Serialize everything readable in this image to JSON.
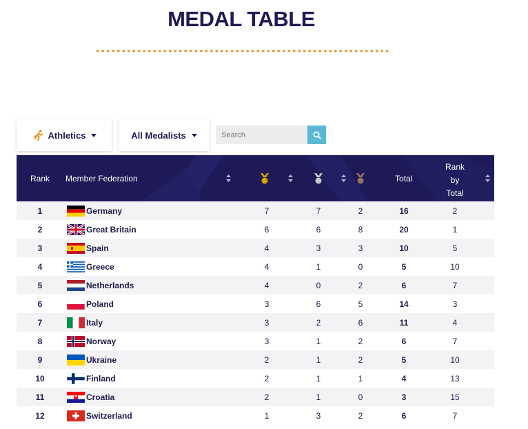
{
  "page_title": "MEDAL TABLE",
  "filters": {
    "sport_label": "Athletics",
    "medalist_label": "All Medalists",
    "search_placeholder": "Search"
  },
  "colors": {
    "header_bg": "#1d1a57",
    "accent": "#f18a1c",
    "search_button": "#5bb8d4",
    "gold": "#d9a400",
    "silver": "#a9a9a9",
    "bronze": "#8a6a5a"
  },
  "table": {
    "headers": {
      "rank": "Rank",
      "member": "Member Federation",
      "gold_icon": "gold-medal-icon",
      "silver_icon": "silver-medal-icon",
      "bronze_icon": "bronze-medal-icon",
      "total": "Total",
      "rank_by_total_1": "Rank",
      "rank_by_total_2": "by",
      "rank_by_total_3": "Total"
    },
    "rows": [
      {
        "rank": "1",
        "flag": "germany",
        "name": "Germany",
        "gold": "7",
        "silver": "7",
        "bronze": "2",
        "total": "16",
        "rank_total": "2"
      },
      {
        "rank": "2",
        "flag": "great-britain",
        "name": "Great Britain",
        "gold": "6",
        "silver": "6",
        "bronze": "8",
        "total": "20",
        "rank_total": "1"
      },
      {
        "rank": "3",
        "flag": "spain",
        "name": "Spain",
        "gold": "4",
        "silver": "3",
        "bronze": "3",
        "total": "10",
        "rank_total": "5"
      },
      {
        "rank": "4",
        "flag": "greece",
        "name": "Greece",
        "gold": "4",
        "silver": "1",
        "bronze": "0",
        "total": "5",
        "rank_total": "10"
      },
      {
        "rank": "5",
        "flag": "netherlands",
        "name": "Netherlands",
        "gold": "4",
        "silver": "0",
        "bronze": "2",
        "total": "6",
        "rank_total": "7"
      },
      {
        "rank": "6",
        "flag": "poland",
        "name": "Poland",
        "gold": "3",
        "silver": "6",
        "bronze": "5",
        "total": "14",
        "rank_total": "3"
      },
      {
        "rank": "7",
        "flag": "italy",
        "name": "Italy",
        "gold": "3",
        "silver": "2",
        "bronze": "6",
        "total": "11",
        "rank_total": "4"
      },
      {
        "rank": "8",
        "flag": "norway",
        "name": "Norway",
        "gold": "3",
        "silver": "1",
        "bronze": "2",
        "total": "6",
        "rank_total": "7"
      },
      {
        "rank": "9",
        "flag": "ukraine",
        "name": "Ukraine",
        "gold": "2",
        "silver": "1",
        "bronze": "2",
        "total": "5",
        "rank_total": "10"
      },
      {
        "rank": "10",
        "flag": "finland",
        "name": "Finland",
        "gold": "2",
        "silver": "1",
        "bronze": "1",
        "total": "4",
        "rank_total": "13"
      },
      {
        "rank": "11",
        "flag": "croatia",
        "name": "Croatia",
        "gold": "2",
        "silver": "1",
        "bronze": "0",
        "total": "3",
        "rank_total": "15"
      },
      {
        "rank": "12",
        "flag": "switzerland",
        "name": "Switzerland",
        "gold": "1",
        "silver": "3",
        "bronze": "2",
        "total": "6",
        "rank_total": "7"
      }
    ]
  }
}
